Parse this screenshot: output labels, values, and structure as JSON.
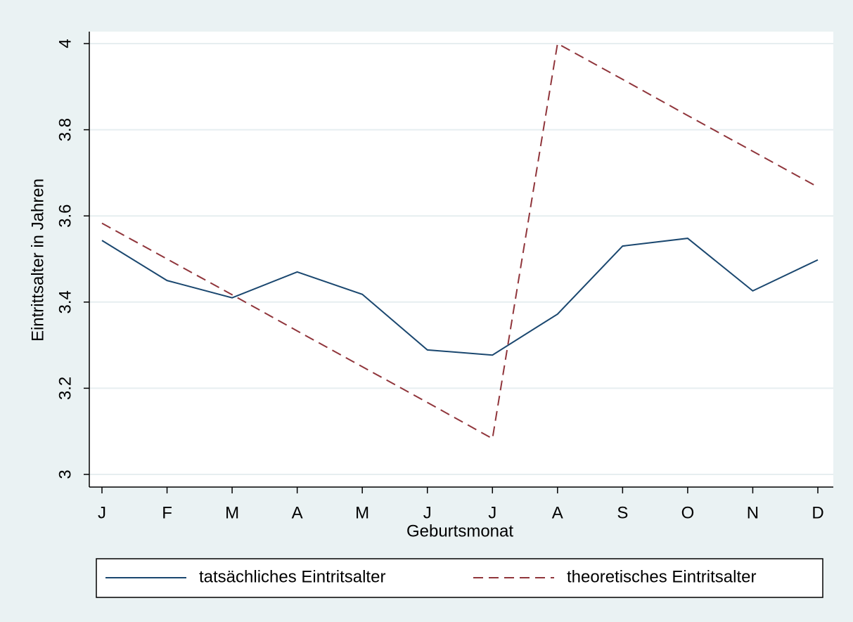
{
  "chart_data": {
    "type": "line",
    "xlabel": "Geburtsmonat",
    "ylabel": "Eintrittsalter in Jahren",
    "categories": [
      "J",
      "F",
      "M",
      "A",
      "M",
      "J",
      "J",
      "A",
      "S",
      "O",
      "N",
      "D"
    ],
    "series": [
      {
        "name": "tatsächliches Eintritsalter",
        "color": "#1a476f",
        "dash": false,
        "values": [
          3.543,
          3.45,
          3.41,
          3.47,
          3.418,
          3.289,
          3.277,
          3.372,
          3.53,
          3.548,
          3.426,
          3.498
        ]
      },
      {
        "name": "theoretisches Eintritsalter",
        "color": "#90353b",
        "dash": true,
        "values": [
          3.583,
          3.5,
          3.417,
          3.333,
          3.25,
          3.167,
          3.083,
          4.0,
          3.917,
          3.833,
          3.75,
          3.667
        ]
      }
    ],
    "ylim": [
      3,
      4
    ],
    "yticks": [
      3,
      3.2,
      3.4,
      3.6,
      3.8,
      4
    ],
    "grid": true
  }
}
